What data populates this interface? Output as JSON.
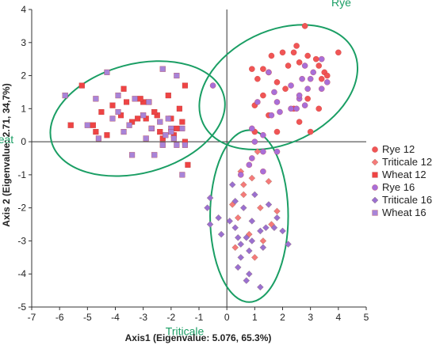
{
  "chart_data": {
    "type": "scatter",
    "xlabel": "Axis1 (Eigenvalue: 5.076, 65.3%)",
    "ylabel": "Axis 2 (Eigenvalue: 2.71, 34,7%)",
    "xlim": [
      -7,
      5
    ],
    "ylim": [
      -5,
      4
    ],
    "x_ticks": [
      "-7",
      "-6",
      "-5",
      "-4",
      "-3",
      "-2",
      "-1",
      "0",
      "1",
      "2",
      "3",
      "4",
      "5"
    ],
    "y_ticks": [
      "-5",
      "-4",
      "-3",
      "-2",
      "-1",
      "0",
      "1",
      "2",
      "3",
      "4"
    ],
    "legend_position": "right",
    "grid": false,
    "series": [
      {
        "name": "Rye 12",
        "marker": "circle",
        "color": "#f05555",
        "points": [
          [
            2.8,
            3.5
          ],
          [
            2.5,
            2.9
          ],
          [
            1.6,
            2.6
          ],
          [
            2.0,
            2.7
          ],
          [
            2.4,
            2.7
          ],
          [
            2.9,
            2.6
          ],
          [
            3.2,
            2.5
          ],
          [
            4.0,
            2.7
          ],
          [
            1.3,
            2.2
          ],
          [
            2.2,
            2.3
          ],
          [
            3.3,
            2.3
          ],
          [
            3.5,
            2.1
          ],
          [
            3.6,
            2.0
          ],
          [
            3.4,
            1.9
          ],
          [
            1.5,
            2.1
          ],
          [
            1.8,
            1.8
          ],
          [
            2.6,
            2.4
          ],
          [
            0.9,
            2.2
          ],
          [
            1.1,
            1.9
          ],
          [
            2.1,
            1.6
          ],
          [
            2.9,
            1.3
          ],
          [
            3.3,
            1.0
          ],
          [
            1.3,
            1.4
          ],
          [
            2.4,
            1.0
          ],
          [
            1.0,
            0.3
          ],
          [
            1.8,
            0.3
          ],
          [
            3.0,
            0.3
          ],
          [
            2.6,
            0.6
          ],
          [
            1.0,
            1.1
          ],
          [
            1.5,
            0.8
          ]
        ]
      },
      {
        "name": "Triticale 12",
        "marker": "diamond",
        "color": "#f57a7a",
        "points": [
          [
            0.5,
            -0.9
          ],
          [
            1.1,
            -0.3
          ],
          [
            1.5,
            -1.2
          ],
          [
            0.9,
            -1.1
          ],
          [
            0.6,
            -1.6
          ],
          [
            1.2,
            -2.0
          ],
          [
            1.8,
            -2.1
          ],
          [
            0.2,
            -1.9
          ],
          [
            0.4,
            -2.3
          ],
          [
            1.6,
            -2.5
          ],
          [
            0.8,
            -2.8
          ],
          [
            1.3,
            -3.0
          ],
          [
            0.3,
            -3.2
          ],
          [
            1.0,
            -3.5
          ],
          [
            0.6,
            -1.3
          ]
        ]
      },
      {
        "name": "Wheat 12",
        "marker": "square",
        "color": "#ee4444",
        "points": [
          [
            -5.6,
            0.5
          ],
          [
            -5.2,
            1.7
          ],
          [
            -4.8,
            0.5
          ],
          [
            -4.7,
            0.3
          ],
          [
            -4.5,
            0.9
          ],
          [
            -4.1,
            1.1
          ],
          [
            -3.8,
            0.8
          ],
          [
            -3.7,
            1.6
          ],
          [
            -3.6,
            1.2
          ],
          [
            -3.4,
            0.6
          ],
          [
            -3.2,
            0.7
          ],
          [
            -3.0,
            1.2
          ],
          [
            -2.9,
            0.7
          ],
          [
            -2.8,
            1.2
          ],
          [
            -2.7,
            0.4
          ],
          [
            -2.5,
            0.8
          ],
          [
            -2.4,
            0.3
          ],
          [
            -2.3,
            0.1
          ],
          [
            -2.1,
            1.4
          ],
          [
            -2.0,
            0.7
          ],
          [
            -1.9,
            0.2
          ],
          [
            -1.8,
            0.4
          ],
          [
            -1.7,
            1.0
          ],
          [
            -1.6,
            0.6
          ],
          [
            -1.5,
            1.7
          ],
          [
            -1.4,
            -0.7
          ],
          [
            -1.5,
            0.0
          ],
          [
            -3.1,
            1.3
          ],
          [
            -2.6,
            0.9
          ],
          [
            -4.3,
            0.2
          ]
        ]
      },
      {
        "name": "Rye 16",
        "marker": "circle",
        "color": "#a86fd8",
        "points": [
          [
            -0.5,
            1.7
          ],
          [
            1.7,
            1.5
          ],
          [
            1.8,
            1.2
          ],
          [
            1.9,
            0.9
          ],
          [
            2.6,
            1.3
          ],
          [
            2.3,
            1.7
          ],
          [
            2.7,
            1.9
          ],
          [
            2.8,
            2.3
          ],
          [
            3.0,
            1.9
          ],
          [
            3.1,
            2.1
          ],
          [
            3.4,
            1.6
          ],
          [
            3.6,
            1.8
          ],
          [
            2.8,
            1.1
          ],
          [
            2.3,
            1.0
          ],
          [
            2.6,
            1.4
          ],
          [
            1.6,
            0.8
          ],
          [
            1.3,
            0.2
          ],
          [
            1.0,
            0.0
          ],
          [
            0.8,
            -0.7
          ],
          [
            0.9,
            -0.5
          ],
          [
            0.5,
            -1.0
          ],
          [
            1.3,
            -0.3
          ],
          [
            1.8,
            -0.3
          ],
          [
            1.3,
            -0.9
          ],
          [
            2.5,
            1.0
          ],
          [
            1.1,
            1.2
          ],
          [
            0.9,
            0.4
          ],
          [
            2.9,
            1.6
          ],
          [
            3.4,
            2.5
          ],
          [
            1.5,
            2.1
          ]
        ]
      },
      {
        "name": "Triticale 16",
        "marker": "diamond",
        "color": "#9a70d0",
        "points": [
          [
            -0.6,
            -1.7
          ],
          [
            -0.7,
            -2.0
          ],
          [
            -0.3,
            -2.3
          ],
          [
            -0.6,
            -2.5
          ],
          [
            -0.2,
            -2.8
          ],
          [
            0.1,
            -2.4
          ],
          [
            0.3,
            -2.6
          ],
          [
            0.4,
            -2.9
          ],
          [
            0.7,
            -2.9
          ],
          [
            0.8,
            -3.3
          ],
          [
            1.2,
            -2.7
          ],
          [
            0.5,
            -3.1
          ],
          [
            0.9,
            -2.4
          ],
          [
            1.4,
            -2.6
          ],
          [
            1.8,
            -2.3
          ],
          [
            2.0,
            -2.7
          ],
          [
            1.5,
            -1.9
          ],
          [
            2.2,
            -3.1
          ],
          [
            0.8,
            -4.0
          ],
          [
            0.7,
            -4.2
          ],
          [
            1.2,
            -4.4
          ],
          [
            0.5,
            -3.5
          ],
          [
            0.3,
            -1.8
          ],
          [
            0.6,
            -2.0
          ],
          [
            1.0,
            -1.6
          ],
          [
            1.7,
            -2.6
          ],
          [
            1.3,
            -3.2
          ],
          [
            0.4,
            -3.8
          ],
          [
            0.2,
            -1.3
          ],
          [
            0.9,
            -3.0
          ]
        ]
      },
      {
        "name": "Wheat 16",
        "marker": "square",
        "color": "#a884d8",
        "points": [
          [
            -5.8,
            1.4
          ],
          [
            -5.0,
            0.5
          ],
          [
            -4.7,
            1.3
          ],
          [
            -4.6,
            0.1
          ],
          [
            -4.3,
            2.1
          ],
          [
            -4.1,
            0.7
          ],
          [
            -3.9,
            0.9
          ],
          [
            -3.7,
            0.3
          ],
          [
            -3.5,
            0.5
          ],
          [
            -3.4,
            -0.4
          ],
          [
            -3.0,
            0.8
          ],
          [
            -2.8,
            1.2
          ],
          [
            -2.7,
            0.4
          ],
          [
            -2.6,
            -0.4
          ],
          [
            -2.4,
            0.6
          ],
          [
            -2.3,
            -0.1
          ],
          [
            -2.2,
            0.2
          ],
          [
            -2.1,
            0.7
          ],
          [
            -2.0,
            0.4
          ],
          [
            -1.9,
            0.1
          ],
          [
            -1.8,
            -0.1
          ],
          [
            -1.6,
            0.4
          ],
          [
            -1.5,
            -0.1
          ],
          [
            -1.6,
            -1.0
          ],
          [
            -2.0,
            0.3
          ],
          [
            -3.9,
            1.4
          ],
          [
            -2.3,
            2.2
          ],
          [
            -1.8,
            2.0
          ],
          [
            -3.3,
            1.3
          ],
          [
            -2.9,
            0.1
          ]
        ]
      }
    ],
    "ellipses": [
      {
        "label": "Rye",
        "cx": 1.85,
        "cy": 1.65,
        "rx": 3.0,
        "ry": 1.7,
        "angle": -26
      },
      {
        "label": "Wheat",
        "cx": -3.2,
        "cy": 0.7,
        "rx": 3.2,
        "ry": 1.65,
        "angle": -15
      },
      {
        "label": "Triticale",
        "cx": 0.8,
        "cy": -2.25,
        "rx": 1.4,
        "ry": 2.6,
        "angle": 0
      }
    ],
    "ellipse_color": "#1a9e64"
  }
}
